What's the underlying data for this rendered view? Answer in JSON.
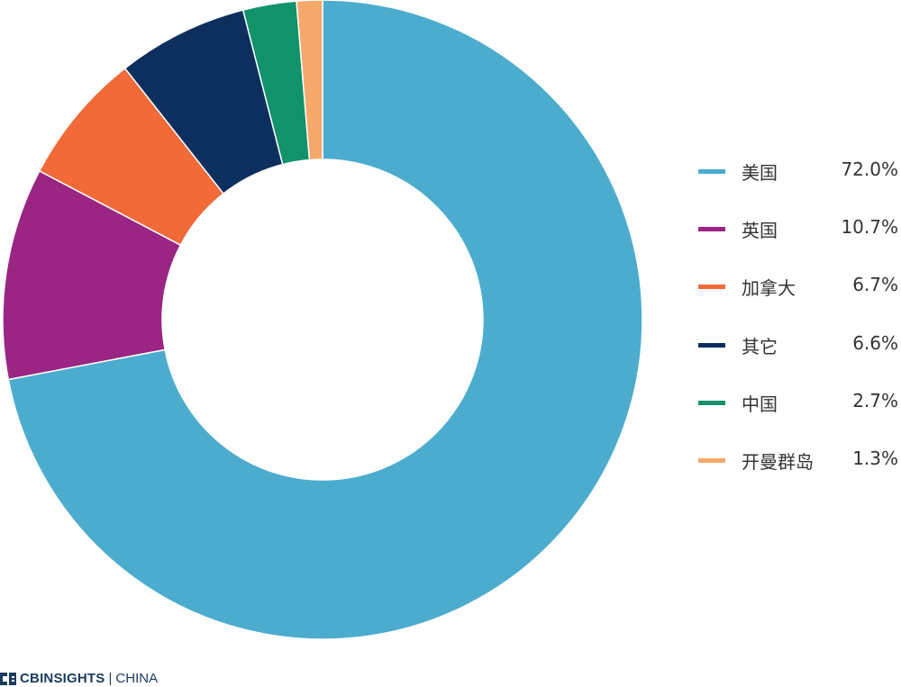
{
  "chart_data": {
    "type": "pie",
    "variant": "donut",
    "title": "",
    "legend_position": "right",
    "series": [
      {
        "name": "美国",
        "value": 72.0,
        "label": "72.0%",
        "color": "#4bacce"
      },
      {
        "name": "英国",
        "value": 10.7,
        "label": "10.7%",
        "color": "#9b2583"
      },
      {
        "name": "加拿大",
        "value": 6.7,
        "label": "6.7%",
        "color": "#f26a38"
      },
      {
        "name": "其它",
        "value": 6.6,
        "label": "6.6%",
        "color": "#0d2f5e"
      },
      {
        "name": "中国",
        "value": 2.7,
        "label": "2.7%",
        "color": "#11926b"
      },
      {
        "name": "开曼群岛",
        "value": 1.3,
        "label": "1.3%",
        "color": "#f5a86a"
      }
    ]
  },
  "brand": {
    "name": "CBINSIGHTS",
    "separator": "|",
    "region": "CHINA",
    "logo_icon": "cb-logo-icon"
  }
}
